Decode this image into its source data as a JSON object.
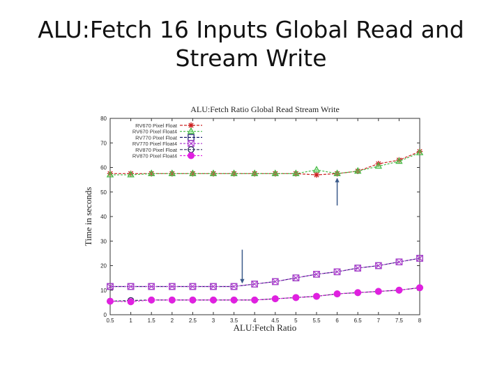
{
  "slide": {
    "title_line1": "ALU:Fetch 16 Inputs Global Read and",
    "title_line2": "Stream Write"
  },
  "chart_data": {
    "type": "line",
    "title": "ALU:Fetch Ratio Global Read Stream Write",
    "xlabel": "ALU:Fetch Ratio",
    "ylabel": "Time in seconds",
    "xlim": [
      0.5,
      8
    ],
    "ylim": [
      0,
      80
    ],
    "x": [
      0.5,
      1,
      1.5,
      2,
      2.5,
      3,
      3.5,
      4,
      4.5,
      5,
      5.5,
      6,
      6.5,
      7,
      7.5,
      8
    ],
    "x_tick_labels": [
      "0.5",
      "1",
      "1.5",
      "2",
      "2.5",
      "3",
      "3.5",
      "4",
      "4.5",
      "5",
      "5.5",
      "6",
      "6.5",
      "7",
      "7.5",
      "8"
    ],
    "y_ticks": [
      0,
      10,
      20,
      30,
      40,
      50,
      60,
      70,
      80
    ],
    "grid": false,
    "legend_position": "top-left",
    "series": [
      {
        "name": "RV670 Pixel Float",
        "color": "#cc2222",
        "marker": "asterisk",
        "values": [
          57.5,
          57.5,
          57.5,
          57.5,
          57.5,
          57.5,
          57.5,
          57.5,
          57.5,
          57.5,
          57.0,
          57.5,
          58.5,
          61.5,
          63.0,
          66.5
        ]
      },
      {
        "name": "RV670 Pixel Float4",
        "color": "#44bb44",
        "marker": "triangle",
        "values": [
          57.0,
          57.0,
          57.5,
          57.5,
          57.5,
          57.5,
          57.5,
          57.5,
          57.5,
          57.5,
          59.0,
          57.5,
          58.5,
          60.5,
          62.5,
          66.0
        ]
      },
      {
        "name": "RV770 Pixel Float",
        "color": "#1a1a6e",
        "marker": "square",
        "values": [
          11.5,
          11.5,
          11.5,
          11.5,
          11.5,
          11.5,
          11.5,
          12.5,
          13.5,
          15.0,
          16.5,
          17.5,
          19.0,
          20.0,
          21.5,
          23.0
        ]
      },
      {
        "name": "RV770 Pixel Float4",
        "color": "#b040d0",
        "marker": "xbox",
        "values": [
          11.5,
          11.5,
          11.5,
          11.5,
          11.5,
          11.5,
          11.5,
          12.5,
          13.5,
          15.0,
          16.5,
          17.5,
          19.0,
          20.0,
          21.5,
          23.0
        ]
      },
      {
        "name": "RV870 Pixel Float",
        "color": "#2a2a5a",
        "marker": "circle-open",
        "values": [
          5.5,
          5.8,
          6.0,
          6.0,
          6.0,
          6.0,
          6.0,
          6.0,
          6.5,
          7.0,
          7.5,
          8.5,
          9.0,
          9.5,
          10.0,
          11.0
        ]
      },
      {
        "name": "RV870 Pixel Float4",
        "color": "#e020e0",
        "marker": "circle-filled",
        "values": [
          5.5,
          5.3,
          6.0,
          6.0,
          6.0,
          6.0,
          6.0,
          6.0,
          6.5,
          7.0,
          7.5,
          8.5,
          9.0,
          9.5,
          10.0,
          11.0
        ]
      }
    ],
    "annotations": [
      {
        "type": "arrow",
        "color": "#3a5a8a",
        "x": 6,
        "y_from": 44.5,
        "y_to": 55.5,
        "direction": "up"
      },
      {
        "type": "arrow",
        "color": "#3a5a8a",
        "x": 3.7,
        "y_from": 26.5,
        "y_to": 13.0,
        "direction": "down"
      }
    ]
  }
}
